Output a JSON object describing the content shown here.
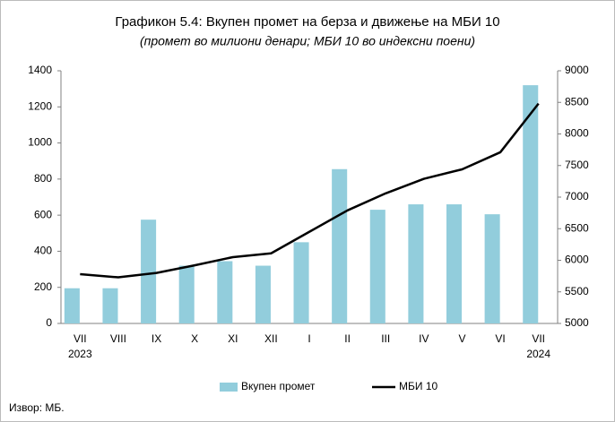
{
  "chart_data": {
    "type": "bar_line",
    "title": "Графикон 5.4: Вкупен промет на берза и движење на МБИ 10",
    "subtitle": "(промет во милиони денари; МБИ 10 во индексни поени)",
    "categories": [
      "VII",
      "VIII",
      "IX",
      "X",
      "XI",
      "XII",
      "I",
      "II",
      "III",
      "IV",
      "V",
      "VI",
      "VII"
    ],
    "year_labels": [
      "2023",
      "2024"
    ],
    "series": [
      {
        "name": "Вкупен промет",
        "type": "bar",
        "color": "#92cddc",
        "values": [
          195,
          195,
          575,
          320,
          345,
          320,
          450,
          855,
          630,
          660,
          660,
          605,
          1320
        ]
      },
      {
        "name": "МБИ 10",
        "type": "line",
        "axis": "y2",
        "color": "#000000",
        "values": [
          5780,
          5730,
          5800,
          5920,
          6050,
          6110,
          6450,
          6790,
          7060,
          7290,
          7440,
          7710,
          8480
        ]
      }
    ],
    "ylim": [
      0,
      1400
    ],
    "yticks": [
      0,
      200,
      400,
      600,
      800,
      1000,
      1200,
      1400
    ],
    "y2lim": [
      5000,
      9000
    ],
    "y2ticks": [
      5000,
      5500,
      6000,
      6500,
      7000,
      7500,
      8000,
      8500,
      9000
    ],
    "legend": "bottom",
    "source": "Извор: МБ."
  }
}
